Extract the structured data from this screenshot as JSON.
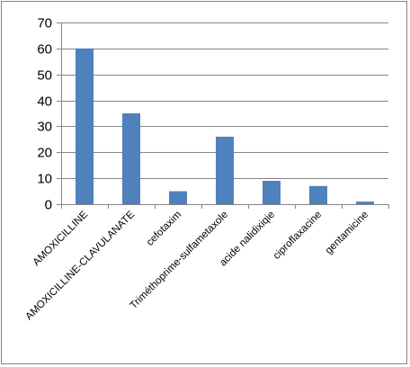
{
  "chart_data": {
    "type": "bar",
    "title": "",
    "xlabel": "",
    "ylabel": "",
    "categories": [
      "AMOXICILLINE",
      "AMOXICILLINE-CLAVULANATE",
      "cefotaxim",
      "Triméthoprime-sulfametaxole",
      "acide nalidixiqie",
      "ciproflaxacine",
      "gentamicine"
    ],
    "values": [
      60,
      35,
      5,
      26,
      9,
      7,
      1
    ],
    "ylim": [
      0,
      70
    ],
    "yticks": [
      0,
      10,
      20,
      30,
      40,
      50,
      60,
      70
    ],
    "grid": true,
    "legend": "none",
    "colors": {
      "bar": "#4F81BD",
      "grid": "#868686",
      "axis": "#868686",
      "frame": "#868686"
    }
  }
}
